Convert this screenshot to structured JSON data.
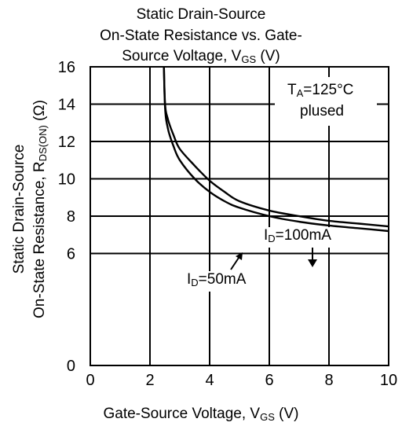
{
  "chart_data": {
    "type": "line",
    "title_lines": [
      "Static Drain-Source",
      "On-State Resistance vs. Gate-",
      "Source Voltage, V"
    ],
    "title_sub": "GS",
    "title_tail": " (V)",
    "xlabel": "Gate-Source Voltage, V",
    "xlabel_sub": "GS",
    "xlabel_tail": " (V)",
    "ylabel_line1": "Static Drain-Source",
    "ylabel_line2": "On-State Resistance,  R",
    "ylabel_sub": "DS(ON)",
    "ylabel_tail": " (Ω)",
    "xlim": [
      0,
      10
    ],
    "ylim": [
      0,
      16
    ],
    "x_ticks": [
      "0",
      "2",
      "4",
      "6",
      "8",
      "10"
    ],
    "y_ticks": [
      "0",
      "6",
      "8",
      "10",
      "12",
      "14",
      "16"
    ],
    "grid": true,
    "condition_line1": "T",
    "condition_sub": "A",
    "condition_tail": "=125°C",
    "condition_line2": "plused",
    "series": [
      {
        "name": "I_D=100mA",
        "label_main": "I",
        "label_sub": "D",
        "label_tail": "=100mA",
        "color": "#000000",
        "x": [
          2.45,
          2.5,
          2.6,
          2.8,
          3.0,
          3.5,
          4.0,
          4.5,
          5.0,
          6.0,
          7.0,
          8.0,
          9.0,
          10.0
        ],
        "y": [
          17.5,
          14.2,
          13.2,
          12.3,
          11.6,
          10.7,
          9.9,
          9.3,
          8.8,
          8.3,
          8.0,
          7.75,
          7.6,
          7.45
        ]
      },
      {
        "name": "I_D=50mA",
        "label_main": "I",
        "label_sub": "D",
        "label_tail": "=50mA",
        "color": "#000000",
        "x": [
          2.45,
          2.5,
          2.6,
          2.8,
          3.0,
          3.5,
          4.0,
          4.5,
          5.0,
          6.0,
          7.0,
          8.0,
          9.0,
          10.0
        ],
        "y": [
          17.5,
          14.0,
          12.7,
          11.7,
          11.0,
          10.0,
          9.3,
          8.8,
          8.45,
          8.0,
          7.7,
          7.5,
          7.35,
          7.2
        ]
      }
    ]
  }
}
